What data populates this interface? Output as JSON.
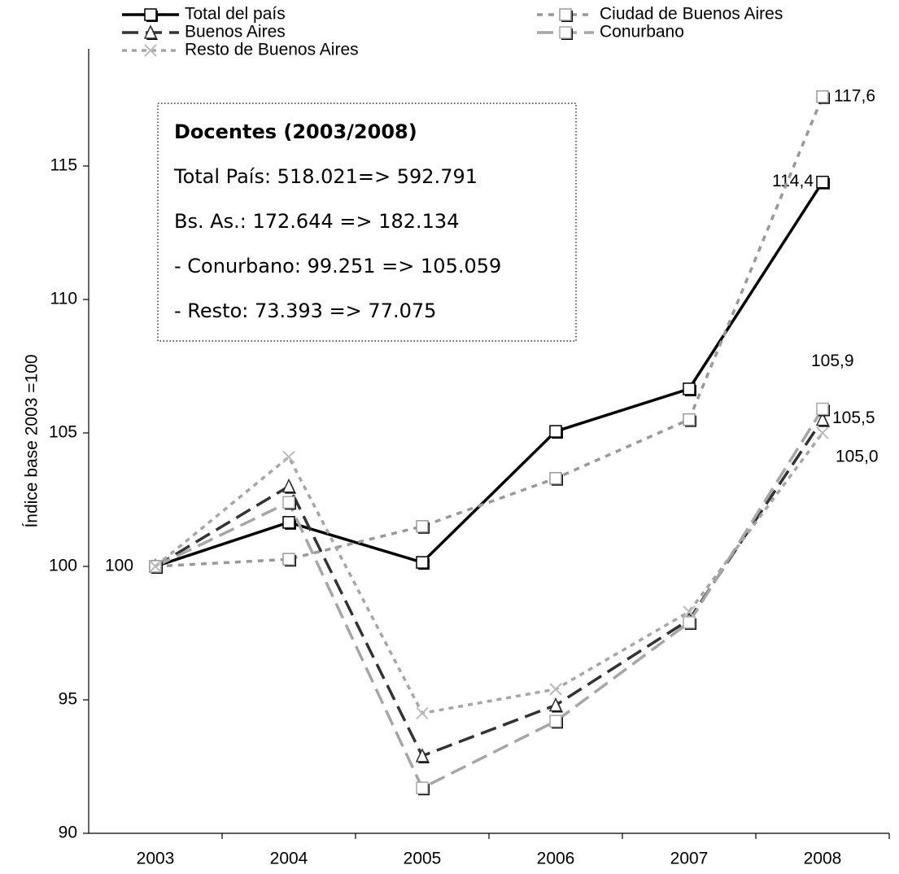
{
  "chart_data": {
    "type": "line",
    "y_label": "Índice base 2003 =100",
    "categories": [
      "2003",
      "2004",
      "2005",
      "2006",
      "2007",
      "2008"
    ],
    "ylim": [
      90,
      120
    ],
    "yticks": [
      90,
      95,
      100,
      105,
      110,
      115
    ],
    "series": [
      {
        "name": "Total del país",
        "color": "#000000",
        "dash": "solid",
        "marker": "square",
        "values": [
          100,
          101.65,
          100.15,
          105.06,
          106.65,
          114.4
        ],
        "value_labels": [
          "100",
          null,
          null,
          null,
          null,
          "114,4"
        ]
      },
      {
        "name": "Ciudad de Buenos Aires",
        "color": "#999999",
        "dash": "dash",
        "marker": "square",
        "values": [
          100,
          100.27,
          101.5,
          103.3,
          105.5,
          117.6
        ],
        "value_labels": [
          null,
          null,
          null,
          null,
          null,
          "117,6"
        ]
      },
      {
        "name": "Buenos Aires",
        "color": "#333333",
        "dash": "longdash",
        "marker": "triangle",
        "values": [
          100,
          103.0,
          92.9,
          94.8,
          98.0,
          105.5
        ],
        "value_labels": [
          null,
          null,
          null,
          null,
          null,
          "105,5"
        ]
      },
      {
        "name": "Conurbano",
        "color": "#a6a6a6",
        "dash": "longdash",
        "marker": "square",
        "values": [
          100,
          102.4,
          91.7,
          94.2,
          97.9,
          105.9
        ],
        "value_labels": [
          null,
          null,
          null,
          null,
          null,
          "105,9"
        ]
      },
      {
        "name": "Resto de Buenos Aires",
        "color": "#a6a6a6",
        "dash": "dot",
        "marker": "x",
        "values": [
          100,
          104.1,
          94.5,
          95.4,
          98.3,
          105.0
        ],
        "value_labels": [
          null,
          null,
          null,
          null,
          null,
          "105,0"
        ]
      }
    ],
    "annotation": {
      "title": "Docentes (2003/2008)",
      "lines": [
        "Total País: 518.021=> 592.791",
        "Bs. As.: 172.644 => 182.134",
        "- Conurbano: 99.251 => 105.059",
        "- Resto: 73.393 => 77.075"
      ]
    }
  }
}
